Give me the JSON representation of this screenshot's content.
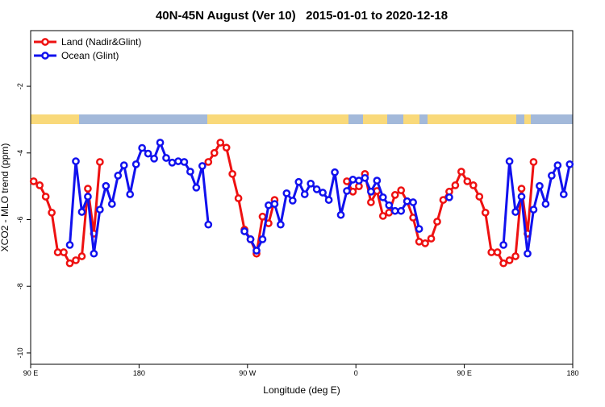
{
  "chart_data": {
    "type": "line",
    "title": "40N-45N August (Ver 10)   2015-01-01 to 2020-12-18",
    "x_label": "Longitude (deg E)",
    "y_label": "XCO2 - MLO trend (ppm)",
    "x": [
      92.5,
      97.5,
      102.5,
      107.5,
      112.5,
      117.5,
      122.5,
      127.5,
      132.5,
      137.5,
      142.5,
      147.5,
      152.5,
      157.5,
      162.5,
      167.5,
      172.5,
      177.5,
      182.5,
      187.5,
      192.5,
      197.5,
      202.5,
      207.5,
      212.5,
      217.5,
      222.5,
      227.5,
      232.5,
      237.5,
      242.5,
      247.5,
      252.5,
      257.5,
      262.5,
      267.5,
      272.5,
      277.5,
      282.5,
      287.5,
      292.5,
      297.5,
      302.5,
      307.5,
      312.5,
      317.5,
      322.5,
      327.5,
      332.5,
      337.5,
      342.5,
      347.5,
      352.5,
      357.5,
      362.5,
      367.5,
      372.5,
      377.5,
      382.5,
      387.5,
      392.5,
      397.5,
      402.5,
      407.5,
      412.5,
      417.5,
      422.5,
      427.5,
      432.5,
      437.5,
      442.5,
      447.5,
      452.5,
      457.5,
      462.5,
      467.5,
      472.5,
      477.5,
      482.5,
      487.5,
      492.5,
      497.5,
      502.5,
      507.5,
      512.5,
      517.5,
      522.5,
      527.5,
      532.5,
      537.5
    ],
    "series": [
      {
        "name": "Land (Nadir&Glint)",
        "color": "#ee1111",
        "values": [
          -4.85,
          -4.97,
          -5.31,
          -5.79,
          -6.98,
          -6.98,
          -7.31,
          -7.22,
          -7.1,
          -5.07,
          -6.42,
          -4.27,
          null,
          null,
          null,
          null,
          null,
          null,
          null,
          null,
          null,
          null,
          null,
          null,
          null,
          null,
          null,
          null,
          null,
          -4.27,
          -4.0,
          -3.69,
          -3.84,
          -4.63,
          -5.36,
          -6.3,
          -6.59,
          -7.02,
          -5.91,
          -6.11,
          -5.41,
          null,
          null,
          null,
          null,
          null,
          null,
          null,
          null,
          null,
          null,
          null,
          -4.85,
          -5.16,
          -5.0,
          -4.63,
          -5.48,
          -5.14,
          -5.89,
          -5.79,
          -5.26,
          -5.12,
          -5.45,
          -5.94,
          -6.66,
          -6.71,
          -6.57,
          -6.06,
          -5.41,
          -5.16,
          -4.97,
          -4.56,
          -4.85,
          -4.97,
          -5.31,
          -5.79,
          -6.98,
          -6.98,
          -7.31,
          -7.22,
          -7.1,
          -5.07,
          -6.42,
          -4.27,
          null,
          null,
          null,
          null,
          null,
          null
        ]
      },
      {
        "name": "Ocean (Glint)",
        "color": "#1111ee",
        "values": [
          null,
          null,
          null,
          null,
          null,
          null,
          -6.76,
          -4.25,
          -5.77,
          -5.31,
          -7.02,
          -5.7,
          -4.99,
          -5.53,
          -4.68,
          -4.37,
          -5.24,
          -4.34,
          -3.85,
          -4.02,
          -4.17,
          -3.69,
          -4.15,
          -4.29,
          -4.25,
          -4.27,
          -4.56,
          -5.04,
          -4.39,
          -6.15,
          null,
          null,
          null,
          null,
          null,
          -6.35,
          -6.59,
          -6.93,
          -6.59,
          -5.57,
          -5.53,
          -6.15,
          -5.21,
          -5.43,
          -4.87,
          -5.24,
          -4.92,
          -5.09,
          -5.19,
          -5.41,
          -4.58,
          -5.86,
          -5.14,
          -4.8,
          -4.83,
          -4.75,
          -5.16,
          -4.83,
          -5.33,
          -5.57,
          -5.74,
          -5.74,
          -5.45,
          -5.48,
          -6.28,
          null,
          null,
          null,
          null,
          -5.33,
          null,
          null,
          null,
          null,
          null,
          null,
          null,
          null,
          -6.76,
          -4.25,
          -5.77,
          -5.31,
          -7.02,
          -5.7,
          -4.99,
          -5.53,
          -4.68,
          -4.37,
          -5.24,
          -4.34
        ]
      }
    ],
    "xlim": [
      90,
      540
    ],
    "xticks": [
      {
        "value": 90,
        "label": "90 E"
      },
      {
        "value": 180,
        "label": "180"
      },
      {
        "value": 270,
        "label": "90 W"
      },
      {
        "value": 360,
        "label": "0"
      },
      {
        "value": 450,
        "label": "90 E"
      },
      {
        "value": 540,
        "label": "180"
      }
    ],
    "ylim": [
      -10.34,
      -0.33
    ],
    "yticks": [
      -2,
      -4,
      -6,
      -8,
      -10
    ],
    "grid": false,
    "legend": "top-left"
  }
}
